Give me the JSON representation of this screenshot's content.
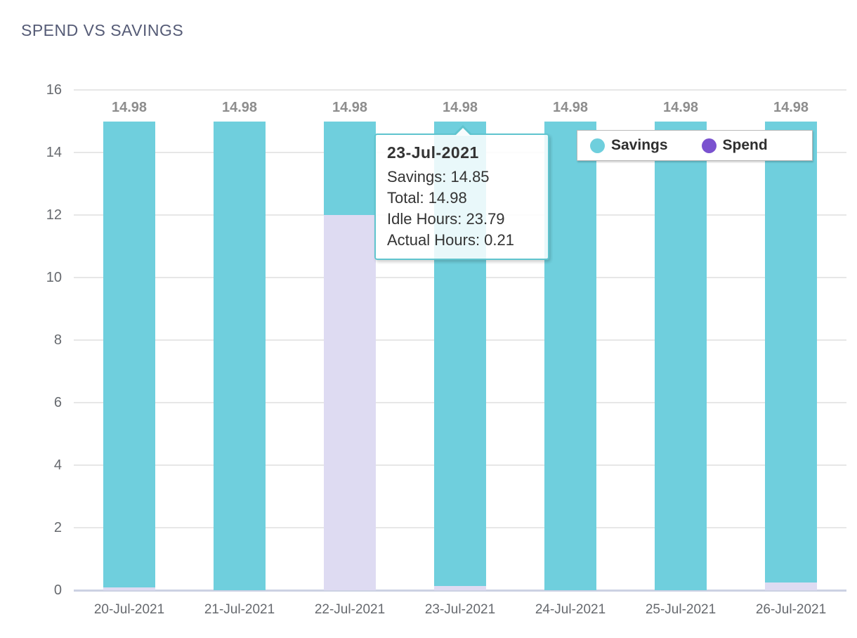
{
  "page": {
    "title": "SPEND VS SAVINGS"
  },
  "colors": {
    "savings": "#6fcfdd",
    "spend_bar_fill": "#dedbf2",
    "spend_marker": "#7a52cf",
    "title_text": "#555b76",
    "axis_label": "#66696e",
    "bar_label": "#8d8d8d",
    "gridline": "#e7e7e7",
    "axis_line": "#ccd1e3",
    "tooltip_border": "#5fc4ce"
  },
  "chart_data": {
    "type": "bar",
    "stacked": true,
    "title": "SPEND VS SAVINGS",
    "categories": [
      "20-Jul-2021",
      "21-Jul-2021",
      "22-Jul-2021",
      "23-Jul-2021",
      "24-Jul-2021",
      "25-Jul-2021",
      "26-Jul-2021"
    ],
    "series": [
      {
        "name": "Spend",
        "values": [
          0.1,
          0,
          12,
          0.13,
          0,
          0,
          0.25
        ],
        "bar_color": "#dedbf2",
        "marker_color": "#7a52cf"
      },
      {
        "name": "Savings",
        "values": [
          14.88,
          14.98,
          2.98,
          14.85,
          14.98,
          14.98,
          14.73
        ],
        "bar_color": "#6fcfdd",
        "marker_color": "#6fcfdd"
      }
    ],
    "totals": [
      14.98,
      14.98,
      14.98,
      14.98,
      14.98,
      14.98,
      14.98
    ],
    "data_labels": [
      "14.98",
      "14.98",
      "14.98",
      "14.98",
      "14.98",
      "14.98",
      "14.98"
    ],
    "xlabel": "",
    "ylabel": "",
    "ylim": [
      0,
      16
    ],
    "yticks": [
      0,
      2,
      4,
      6,
      8,
      10,
      12,
      14,
      16
    ],
    "grid": true,
    "legend_position": "top-right"
  },
  "legend": {
    "items": [
      {
        "label": "Savings",
        "color": "#6fcfdd"
      },
      {
        "label": "Spend",
        "color": "#7a52cf"
      }
    ]
  },
  "tooltip": {
    "title": "23-Jul-2021",
    "lines": [
      "Savings: 14.85",
      "Total: 14.98",
      "Idle Hours: 23.79",
      "Actual Hours: 0.21"
    ]
  }
}
